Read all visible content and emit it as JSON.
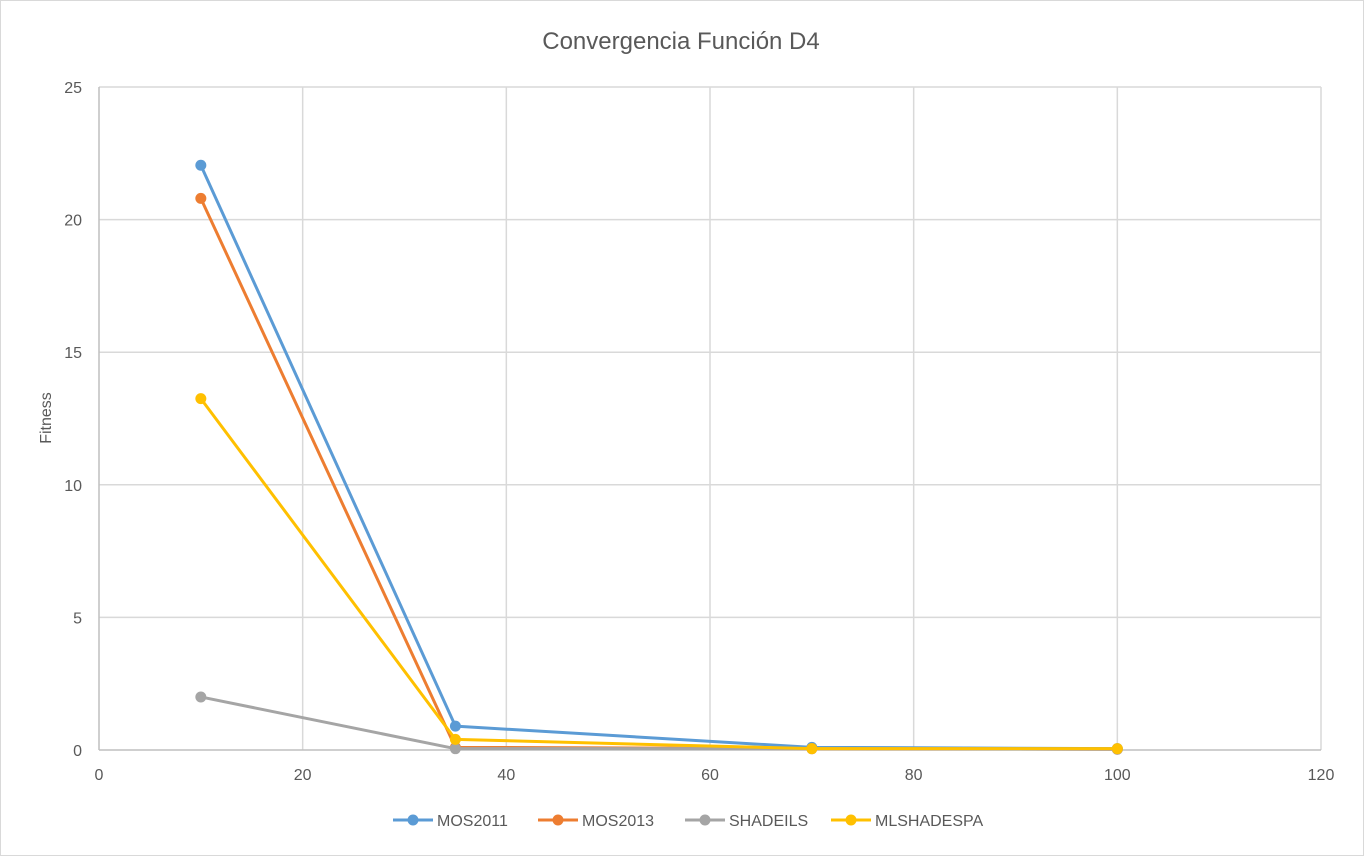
{
  "chart_data": {
    "type": "scatter",
    "title": "Convergencia Función D4",
    "xlabel": "",
    "ylabel": "Fitness",
    "xlim": [
      0,
      120
    ],
    "ylim": [
      0,
      25
    ],
    "x_ticks": [
      0,
      20,
      40,
      60,
      80,
      100,
      120
    ],
    "y_ticks": [
      0,
      5,
      10,
      15,
      20,
      25
    ],
    "grid": true,
    "legend_position": "bottom",
    "x": [
      10,
      35,
      70,
      100
    ],
    "series": [
      {
        "name": "MOS2011",
        "color": "#5b9bd5",
        "values": [
          22.05,
          0.9,
          0.1,
          0.05
        ]
      },
      {
        "name": "MOS2013",
        "color": "#ed7d31",
        "values": [
          20.8,
          0.1,
          0.05,
          0.03
        ]
      },
      {
        "name": "SHADEILS",
        "color": "#a5a5a5",
        "values": [
          2.0,
          0.05,
          0.05,
          0.03
        ]
      },
      {
        "name": "MLSHADESPA",
        "color": "#ffc000",
        "values": [
          13.25,
          0.4,
          0.05,
          0.05
        ]
      }
    ]
  }
}
